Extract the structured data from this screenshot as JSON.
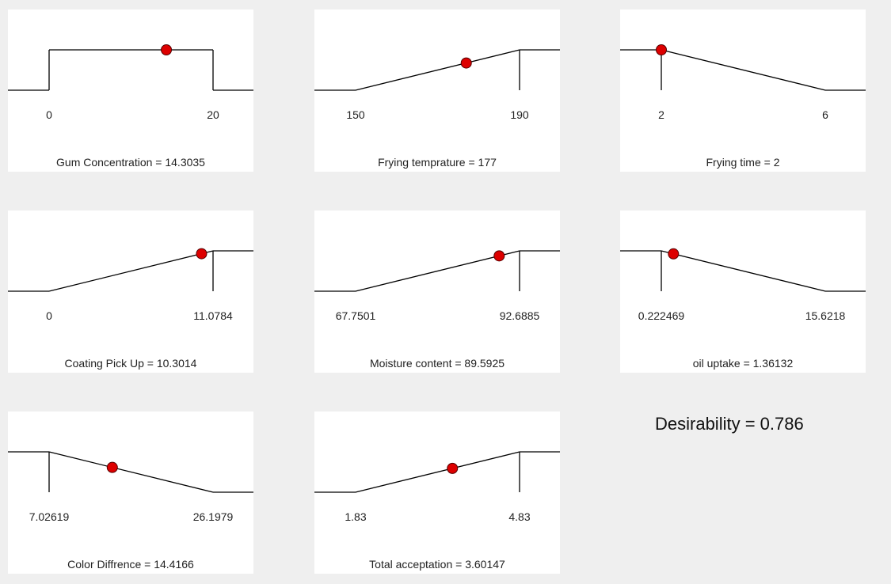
{
  "chart_data": [
    {
      "type": "line",
      "title": "Gum Concentration = 14.3035",
      "low": "0",
      "high": "20",
      "lo": 0,
      "hi": 20,
      "goal": "target",
      "value": 14.3035
    },
    {
      "type": "line",
      "title": "Frying temprature = 177",
      "low": "150",
      "high": "190",
      "lo": 150,
      "hi": 190,
      "goal": "maximize",
      "value": 177
    },
    {
      "type": "line",
      "title": "Frying time = 2",
      "low": "2",
      "high": "6",
      "lo": 2,
      "hi": 6,
      "goal": "minimize",
      "value": 2
    },
    {
      "type": "line",
      "title": "Coating Pick Up = 10.3014",
      "low": "0",
      "high": "11.0784",
      "lo": 0,
      "hi": 11.0784,
      "goal": "maximize",
      "value": 10.3014
    },
    {
      "type": "line",
      "title": "Moisture content = 89.5925",
      "low": "67.7501",
      "high": "92.6885",
      "lo": 67.7501,
      "hi": 92.6885,
      "goal": "maximize",
      "value": 89.5925
    },
    {
      "type": "line",
      "title": "oil uptake = 1.36132",
      "low": "0.222469",
      "high": "15.6218",
      "lo": 0.222469,
      "hi": 15.6218,
      "goal": "minimize",
      "value": 1.36132
    },
    {
      "type": "line",
      "title": "Color Diffrence = 14.4166",
      "low": "7.02619",
      "high": "26.1979",
      "lo": 7.02619,
      "hi": 26.1979,
      "goal": "minimize",
      "value": 14.4166
    },
    {
      "type": "line",
      "title": "Total acceptation = 3.60147",
      "low": "1.83",
      "high": "4.83",
      "lo": 1.83,
      "hi": 4.83,
      "goal": "maximize",
      "value": 3.60147
    }
  ],
  "desirability_label": "Desirability = 0.786",
  "colors": {
    "point": "#dd0000",
    "point_outline": "#550000",
    "line": "#000000",
    "panel": "#ffffff",
    "background": "#efefef"
  }
}
